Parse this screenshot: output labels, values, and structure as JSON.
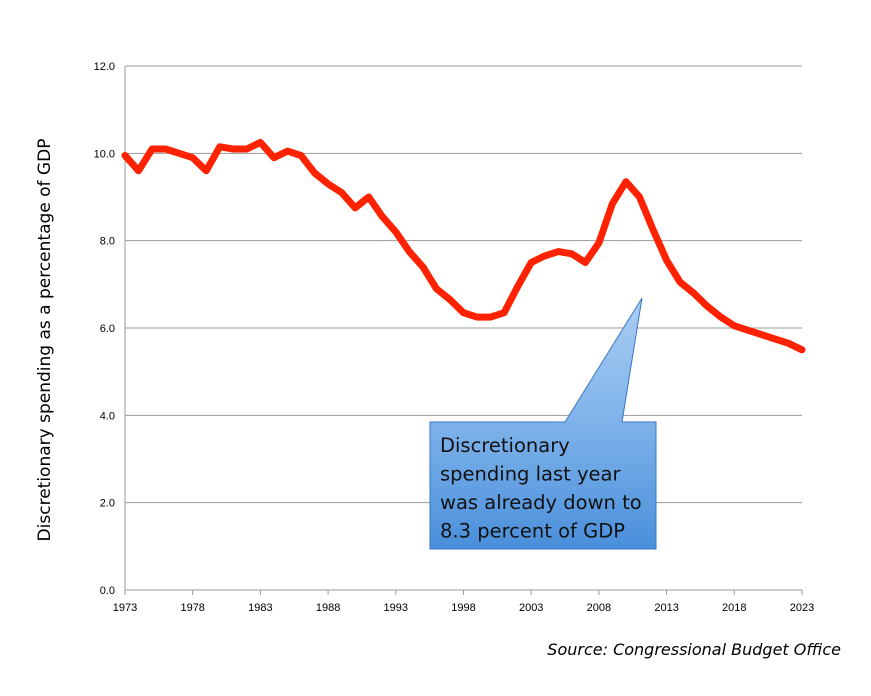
{
  "chart_data": {
    "type": "line",
    "ylabel": "Discretionary spending as a percentage of GDP",
    "xlabel": "",
    "ylim": [
      0,
      12
    ],
    "xlim": [
      1973,
      2023
    ],
    "yticks": [
      "0.0",
      "2.0",
      "4.0",
      "6.0",
      "8.0",
      "10.0",
      "12.0"
    ],
    "xticks": [
      "1973",
      "1978",
      "1983",
      "1988",
      "1993",
      "1998",
      "2003",
      "2008",
      "2013",
      "2018",
      "2023"
    ],
    "grid": "horizontal",
    "line_color": "#ff2200",
    "x": [
      1973,
      1974,
      1975,
      1976,
      1977,
      1978,
      1979,
      1980,
      1981,
      1982,
      1983,
      1984,
      1985,
      1986,
      1987,
      1988,
      1989,
      1990,
      1991,
      1992,
      1993,
      1994,
      1995,
      1996,
      1997,
      1998,
      1999,
      2000,
      2001,
      2002,
      2003,
      2004,
      2005,
      2006,
      2007,
      2008,
      2009,
      2010,
      2011,
      2012,
      2013,
      2014,
      2015,
      2016,
      2017,
      2018,
      2019,
      2020,
      2021,
      2022,
      2023
    ],
    "values": [
      9.95,
      9.6,
      10.1,
      10.1,
      10.0,
      9.9,
      9.6,
      10.15,
      10.1,
      10.1,
      10.25,
      9.9,
      10.05,
      9.95,
      9.55,
      9.3,
      9.1,
      8.75,
      9.0,
      8.55,
      8.2,
      7.75,
      7.4,
      6.9,
      6.65,
      6.35,
      6.25,
      6.25,
      6.35,
      6.95,
      7.5,
      7.65,
      7.75,
      7.7,
      7.5,
      7.95,
      8.85,
      9.35,
      9.0,
      8.25,
      7.55,
      7.05,
      6.8,
      6.5,
      6.25,
      6.05,
      5.95,
      5.85,
      5.75,
      5.65,
      5.5
    ],
    "annotation": {
      "lines": [
        "Discretionary",
        "spending last year",
        "was already down to",
        "8.3 percent of GDP"
      ],
      "color": "#4a90d9"
    },
    "source": "Source: Congressional Budget Office"
  }
}
